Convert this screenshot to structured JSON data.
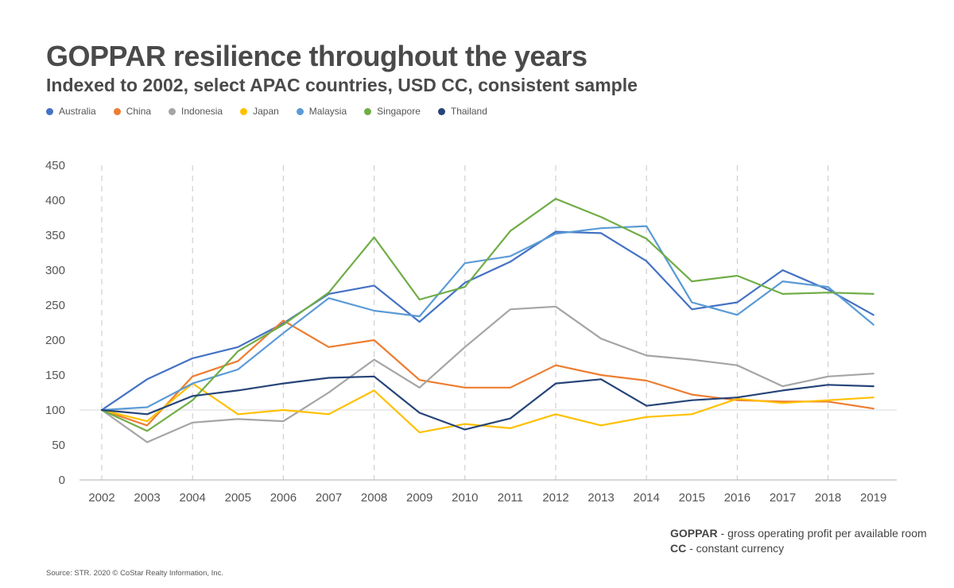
{
  "chart_data": {
    "type": "line",
    "title": "GOPPAR resilience throughout the years",
    "subtitle": "Indexed to 2002, select APAC countries, USD CC, consistent sample",
    "xlabel": "",
    "ylabel": "",
    "ylim": [
      0,
      450
    ],
    "yticks": [
      "0",
      "50",
      "100",
      "150",
      "200",
      "250",
      "300",
      "350",
      "400",
      "450"
    ],
    "grid": "vertical dashed lines at even years",
    "legend_position": "top-left",
    "categories": [
      "2002",
      "2003",
      "2004",
      "2005",
      "2006",
      "2007",
      "2008",
      "2009",
      "2010",
      "2011",
      "2012",
      "2013",
      "2014",
      "2015",
      "2016",
      "2017",
      "2018",
      "2019"
    ],
    "series": [
      {
        "name": "Australia",
        "color": "#4472C4",
        "values": [
          100,
          144,
          174,
          190,
          224,
          266,
          278,
          226,
          282,
          312,
          355,
          353,
          313,
          244,
          254,
          300,
          272,
          236
        ]
      },
      {
        "name": "China",
        "color": "#ED7D31",
        "values": [
          100,
          78,
          148,
          170,
          228,
          190,
          200,
          143,
          132,
          132,
          164,
          150,
          142,
          122,
          114,
          112,
          112,
          102
        ]
      },
      {
        "name": "Indonesia",
        "color": "#A5A5A5",
        "values": [
          100,
          54,
          82,
          87,
          84,
          125,
          172,
          132,
          190,
          244,
          248,
          202,
          178,
          172,
          164,
          134,
          148,
          152
        ]
      },
      {
        "name": "Japan",
        "color": "#FFC000",
        "values": [
          100,
          84,
          138,
          94,
          100,
          94,
          128,
          68,
          80,
          74,
          94,
          78,
          90,
          94,
          116,
          110,
          114,
          118
        ]
      },
      {
        "name": "Malaysia",
        "color": "#5B9BD5",
        "values": [
          100,
          104,
          138,
          158,
          210,
          260,
          242,
          234,
          310,
          320,
          352,
          360,
          363,
          254,
          236,
          284,
          276,
          222
        ]
      },
      {
        "name": "Singapore",
        "color": "#70AD47",
        "values": [
          100,
          70,
          114,
          184,
          222,
          268,
          347,
          258,
          276,
          356,
          402,
          376,
          345,
          284,
          292,
          266,
          268,
          266
        ]
      },
      {
        "name": "Thailand",
        "color": "#264478",
        "values": [
          100,
          94,
          120,
          128,
          138,
          146,
          148,
          96,
          72,
          88,
          138,
          144,
          106,
          114,
          118,
          128,
          136,
          134
        ]
      }
    ]
  },
  "notes": {
    "goppar_term": "GOPPAR",
    "goppar_def": " - gross operating profit per available room",
    "cc_term": "CC",
    "cc_def": " - constant currency"
  },
  "source": "Source: STR. 2020 © CoStar Realty Information, Inc."
}
